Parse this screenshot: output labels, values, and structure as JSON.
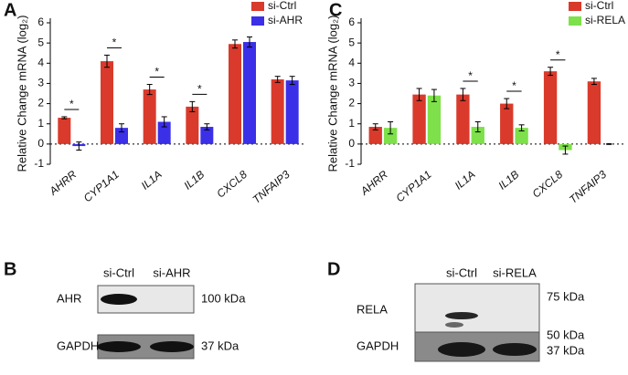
{
  "chart_data": [
    {
      "type": "bar",
      "panel": "A",
      "y_label": "Relative Change mRNA (log₂)",
      "categories": [
        "AHRR",
        "CYP1A1",
        "IL1A",
        "IL1B",
        "CXCL8",
        "TNFAIP3"
      ],
      "series": [
        {
          "name": "si-Ctrl",
          "color": "#d93a2b",
          "values": [
            1.3,
            4.1,
            2.7,
            1.85,
            4.95,
            3.2
          ],
          "errors": [
            0.05,
            0.3,
            0.25,
            0.25,
            0.2,
            0.15
          ]
        },
        {
          "name": "si-AHR",
          "color": "#3b2fe8",
          "values": [
            -0.1,
            0.8,
            1.1,
            0.85,
            5.05,
            3.15
          ],
          "errors": [
            0.2,
            0.2,
            0.25,
            0.15,
            0.25,
            0.2
          ]
        }
      ],
      "significant": [
        true,
        true,
        true,
        true,
        false,
        false
      ],
      "significance_label": "*",
      "ylim": [
        -1,
        6
      ],
      "yticks": [
        -1,
        0,
        1,
        2,
        3,
        4,
        5,
        6
      ],
      "legend": "top-right"
    },
    {
      "type": "bar",
      "panel": "C",
      "y_label": "Relative Change mRNA (log₂)",
      "categories": [
        "AHRR",
        "CYP1A1",
        "IL1A",
        "IL1B",
        "CXCL8",
        "TNFAIP3"
      ],
      "series": [
        {
          "name": "si-Ctrl",
          "color": "#d93a2b",
          "values": [
            0.85,
            2.45,
            2.45,
            2.0,
            3.6,
            3.1
          ],
          "errors": [
            0.15,
            0.3,
            0.3,
            0.25,
            0.2,
            0.15
          ]
        },
        {
          "name": "si-RELA",
          "color": "#7ee04a",
          "values": [
            0.8,
            2.4,
            0.85,
            0.8,
            -0.3,
            0.0
          ],
          "errors": [
            0.3,
            0.3,
            0.25,
            0.15,
            0.2,
            0.02
          ]
        }
      ],
      "significant": [
        false,
        false,
        true,
        true,
        true,
        false
      ],
      "significance_label": "*",
      "ylim": [
        -1,
        6
      ],
      "yticks": [
        -1,
        0,
        1,
        2,
        3,
        4,
        5,
        6
      ],
      "legend": "top-right"
    }
  ],
  "blots": [
    {
      "panel": "B",
      "lanes": [
        "si-Ctrl",
        "si-AHR"
      ],
      "rows": [
        {
          "label": "AHR",
          "marker": "100 kDa"
        },
        {
          "label": "GAPDH",
          "marker": "37 kDa"
        }
      ]
    },
    {
      "panel": "D",
      "lanes": [
        "si-Ctrl",
        "si-RELA"
      ],
      "rows": [
        {
          "label": "RELA",
          "marker": "75 kDa"
        },
        {
          "label": "GAPDH",
          "marker": "50 kDa"
        }
      ],
      "extra_marker": "37 kDa"
    }
  ]
}
